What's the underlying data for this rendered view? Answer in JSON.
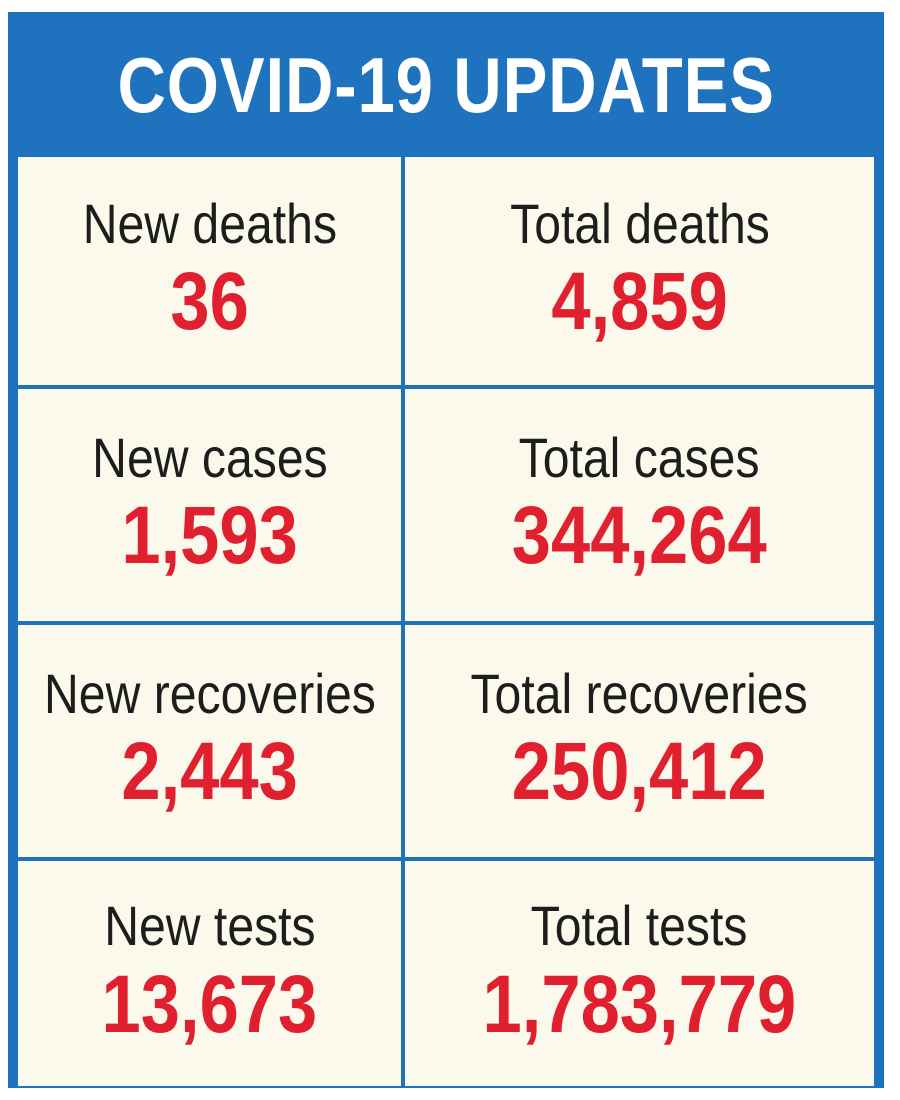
{
  "title": "COVID-19 UPDATES",
  "colors": {
    "frame": "#1f73be",
    "cell_background": "#fbf9ec",
    "label_text": "#1d1d1d",
    "value_text": "#e0202e",
    "title_text": "#ffffff"
  },
  "stats": [
    {
      "label": "New deaths",
      "value": "36"
    },
    {
      "label": "Total deaths",
      "value": "4,859"
    },
    {
      "label": "New cases",
      "value": "1,593"
    },
    {
      "label": "Total cases",
      "value": "344,264"
    },
    {
      "label": "New recoveries",
      "value": "2,443"
    },
    {
      "label": "Total recoveries",
      "value": "250,412"
    },
    {
      "label": "New tests",
      "value": "13,673"
    },
    {
      "label": "Total tests",
      "value": "1,783,779"
    }
  ]
}
